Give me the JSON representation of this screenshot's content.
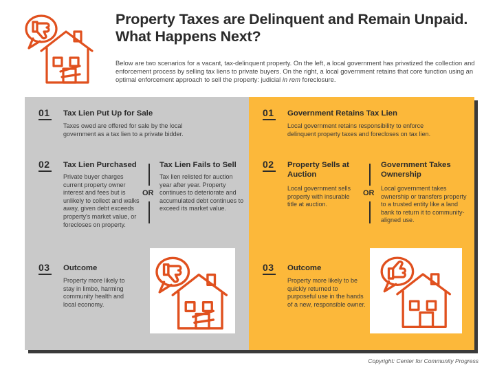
{
  "header": {
    "title": "Property Taxes are Delinquent and Remain Unpaid. What Happens Next?",
    "intro_main": "Below are two scenarios for a vacant, tax-delinquent property. On the left, a local government has privatized the collection and enforcement process by selling tax liens to private buyers. On the right, a local government retains that core function using an optimal enforcement approach to sell the property: judicial ",
    "intro_italic": "in rem",
    "intro_end": " foreclosure."
  },
  "left": {
    "step1": {
      "num": "01",
      "head": "Tax Lien Put Up for Sale",
      "text": "Taxes owed are offered for sale by the local government as a tax lien to a private bidder."
    },
    "step2": {
      "num": "02",
      "head_a": "Tax Lien Purchased",
      "text_a": "Private buyer charges current property owner interest and fees but is unlikely to collect and walks away, given debt exceeds property's market value, or forecloses on property.",
      "or": "OR",
      "head_b": "Tax Lien Fails to Sell",
      "text_b": "Tax lien relisted for auction year after year. Property continues to deteriorate and accumulated debt continues to exceed its market value."
    },
    "step3": {
      "num": "03",
      "head": "Outcome",
      "text": "Property more likely to stay in limbo, harming community health and local economy."
    }
  },
  "right": {
    "step1": {
      "num": "01",
      "head": "Government Retains Tax Lien",
      "text": "Local government retains responsibility to enforce delinquent property taxes and forecloses on tax lien."
    },
    "step2": {
      "num": "02",
      "head_a": "Property Sells at Auction",
      "text_a": "Local government sells property with insurable title at auction.",
      "or": "OR",
      "head_b": "Government Takes Ownership",
      "text_b": "Local government takes ownership or transfers property to a trusted entity like a land bank to return it to community-aligned use."
    },
    "step3": {
      "num": "03",
      "head": "Outcome",
      "text": "Property more likely to be quickly returned to purposeful use in the hands of a new, responsible owner."
    }
  },
  "credit": "Copyright: Center for Community Progress",
  "icons": {
    "header": "thumbs-down-house-icon",
    "left_outcome": "thumbs-down-house-icon",
    "right_outcome": "thumbs-up-house-icon"
  },
  "colors": {
    "accent": "#e0501e",
    "left_panel": "#c9c9c9",
    "right_panel": "#fcb83a",
    "text": "#2b2b2b"
  }
}
